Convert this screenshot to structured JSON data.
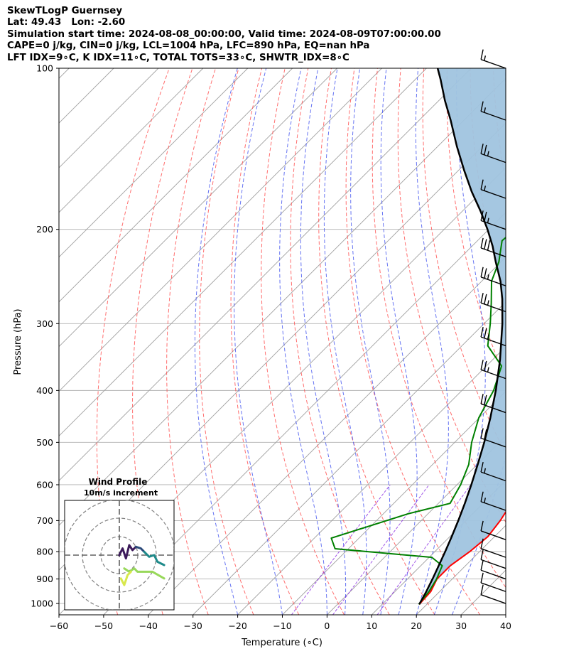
{
  "header": {
    "title": "SkewTLogP Guernsey",
    "location": "Lat: 49.43   Lon: -2.60",
    "times": "Simulation start time: 2024-08-08_00:00:00, Valid time: 2024-08-09T07:00:00.00",
    "indices1": "CAPE=0 j/kg, CIN=0 j/kg, LCL=1004 hPa, LFC=890 hPa, EQ=nan hPa",
    "indices2": "LFT IDX=9∘C, K IDX=11∘C, TOTAL TOTS=33∘C, SHWTR_IDX=8∘C"
  },
  "chart_data": {
    "type": "line",
    "xlabel": "Temperature (∘C)",
    "ylabel": "Pressure (hPa)",
    "x_ticks": [
      -60,
      -50,
      -40,
      -30,
      -20,
      -10,
      0,
      10,
      20,
      30,
      40
    ],
    "y_ticks": [
      100,
      200,
      300,
      400,
      500,
      600,
      700,
      800,
      900,
      1000
    ],
    "xlim": [
      -60,
      40
    ],
    "ylim": [
      1050,
      100
    ],
    "y_scale": "log",
    "grid": true,
    "skew": true,
    "colors": {
      "temperature": "#ff0000",
      "dewpoint": "#008000",
      "parcel": "#000000",
      "cape_fill": "#a0c4df",
      "dry_adiabat": "#ff5555",
      "moist_adiabat": "#4b5cf0",
      "mixing_ratio": "#8a2be2",
      "isotherm": "#a0a0a0"
    },
    "series": [
      {
        "key": "temperature",
        "points": [
          [
            18.3,
            1004
          ],
          [
            18.0,
            950
          ],
          [
            16.6,
            900
          ],
          [
            16.6,
            850
          ],
          [
            17.8,
            800
          ],
          [
            18.5,
            750
          ],
          [
            17.7,
            700
          ],
          [
            16.3,
            650
          ],
          [
            15.2,
            600
          ],
          [
            14.0,
            550
          ],
          [
            12.8,
            500
          ],
          [
            10.7,
            450
          ],
          [
            7.1,
            400
          ],
          [
            2.9,
            350
          ],
          [
            -3.7,
            300
          ],
          [
            -10.3,
            260
          ],
          [
            -14.9,
            230
          ],
          [
            -17.6,
            210
          ],
          [
            -21.1,
            190
          ],
          [
            -24.1,
            170
          ],
          [
            -27.1,
            155
          ],
          [
            -30.5,
            140
          ],
          [
            -33.0,
            125
          ],
          [
            -39.5,
            115
          ],
          [
            -45.2,
            108
          ],
          [
            -51.0,
            100
          ]
        ]
      },
      {
        "key": "dewpoint",
        "points": [
          [
            18.2,
            1004
          ],
          [
            17.6,
            950
          ],
          [
            16.5,
            900
          ],
          [
            14.8,
            850
          ],
          [
            10.6,
            820
          ],
          [
            -13.0,
            790
          ],
          [
            -16.2,
            755
          ],
          [
            -4.5,
            680
          ],
          [
            2.6,
            650
          ],
          [
            0.8,
            600
          ],
          [
            -1.9,
            550
          ],
          [
            -6.2,
            500
          ],
          [
            -10.1,
            450
          ],
          [
            -12.9,
            400
          ],
          [
            -16.6,
            360
          ],
          [
            -24.2,
            330
          ],
          [
            -28.6,
            300
          ],
          [
            -32.9,
            275
          ],
          [
            -37.8,
            250
          ],
          [
            -40.5,
            230
          ],
          [
            -44.5,
            210
          ],
          [
            -43.8,
            195
          ],
          [
            -50.0,
            183
          ],
          [
            -53.0,
            165
          ],
          [
            -54.3,
            150
          ],
          [
            -57.4,
            130
          ],
          [
            -59.1,
            115
          ],
          [
            -61.0,
            100
          ]
        ]
      },
      {
        "key": "parcel",
        "points": [
          [
            18.3,
            1004
          ],
          [
            17.0,
            950
          ],
          [
            15.6,
            900
          ],
          [
            14.0,
            850
          ],
          [
            12.3,
            800
          ],
          [
            10.4,
            750
          ],
          [
            8.3,
            700
          ],
          [
            5.9,
            650
          ],
          [
            3.2,
            600
          ],
          [
            0.1,
            550
          ],
          [
            -3.4,
            500
          ],
          [
            -7.5,
            450
          ],
          [
            -12.4,
            400
          ],
          [
            -18.4,
            350
          ],
          [
            -25.9,
            300
          ],
          [
            -31.4,
            270
          ],
          [
            -35.8,
            250
          ],
          [
            -41.2,
            230
          ],
          [
            -45.4,
            215
          ],
          [
            -50.3,
            200
          ],
          [
            -55.9,
            185
          ],
          [
            -62.3,
            170
          ],
          [
            -68.8,
            155
          ],
          [
            -75.7,
            140
          ],
          [
            -83.0,
            125
          ],
          [
            -88.6,
            115
          ],
          [
            -94.3,
            105
          ],
          [
            -97.5,
            100
          ]
        ]
      }
    ],
    "wind_barbs": [
      {
        "p": 100,
        "speed": 15
      },
      {
        "p": 125,
        "speed": 15
      },
      {
        "p": 150,
        "speed": 25
      },
      {
        "p": 175,
        "speed": 15
      },
      {
        "p": 200,
        "speed": 25
      },
      {
        "p": 225,
        "speed": 30
      },
      {
        "p": 255,
        "speed": 25
      },
      {
        "p": 285,
        "speed": 25
      },
      {
        "p": 330,
        "speed": 25
      },
      {
        "p": 380,
        "speed": 25
      },
      {
        "p": 440,
        "speed": 20
      },
      {
        "p": 510,
        "speed": 20
      },
      {
        "p": 590,
        "speed": 15
      },
      {
        "p": 670,
        "speed": 15
      },
      {
        "p": 760,
        "speed": 10
      },
      {
        "p": 820,
        "speed": 10
      },
      {
        "p": 860,
        "speed": 10
      },
      {
        "p": 900,
        "speed": 10
      },
      {
        "p": 950,
        "speed": 10
      },
      {
        "p": 1000,
        "speed": 10
      }
    ],
    "hodograph": {
      "title": "Wind Profile",
      "subtitle": "10m/s increment",
      "ring_radii": [
        10,
        20,
        30
      ],
      "segments": [
        {
          "color": "#3c1a5a",
          "points": [
            [
              -15,
              0
            ],
            [
              -13,
              4
            ],
            [
              -11,
              -2
            ],
            [
              -9,
              6
            ],
            [
              -7,
              3
            ],
            [
              -5,
              5
            ]
          ]
        },
        {
          "color": "#2b4a7a",
          "points": [
            [
              -5,
              5
            ],
            [
              -2,
              4
            ],
            [
              0,
              2
            ]
          ]
        },
        {
          "color": "#1e8a8a",
          "points": [
            [
              0,
              2
            ],
            [
              3,
              -1
            ],
            [
              6,
              0
            ],
            [
              8,
              -4
            ],
            [
              12,
              -6
            ]
          ]
        },
        {
          "color": "#98d85a",
          "points": [
            [
              -12,
              -8
            ],
            [
              -9,
              -10
            ],
            [
              -6,
              -8
            ],
            [
              -4,
              -10
            ],
            [
              0,
              -10
            ],
            [
              5,
              -10
            ],
            [
              12,
              -14
            ]
          ]
        },
        {
          "color": "#d8e84c",
          "points": [
            [
              -14,
              -14
            ],
            [
              -12,
              -18
            ],
            [
              -10,
              -12
            ],
            [
              -8,
              -10
            ]
          ]
        }
      ]
    }
  }
}
